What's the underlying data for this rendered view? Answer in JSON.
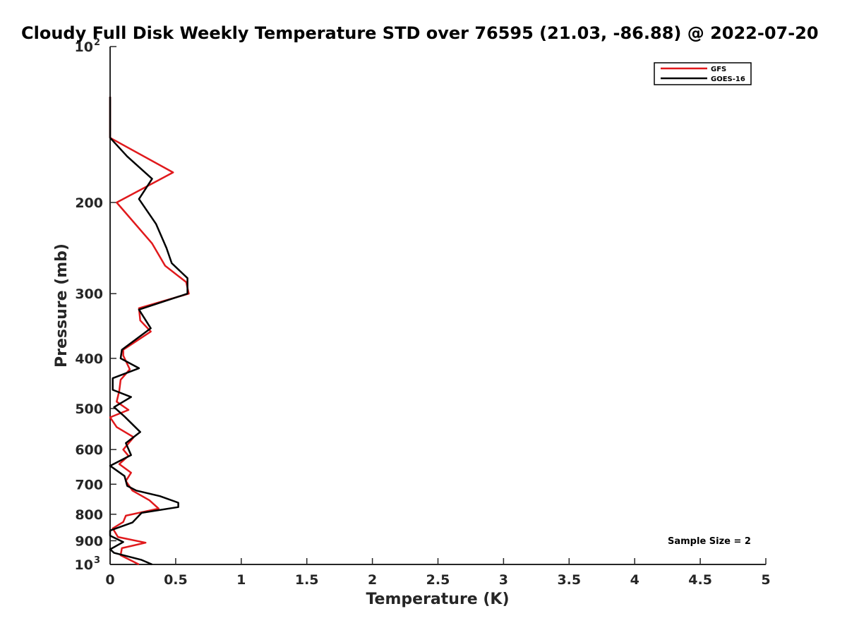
{
  "chart_data": {
    "type": "line",
    "title": "Cloudy Full Disk Weekly Temperature STD over 76595 (21.03, -86.88) @ 2022-07-20",
    "xlabel": "Temperature (K)",
    "ylabel": "Pressure (mb)",
    "xlim": [
      0,
      5
    ],
    "ylim": [
      100,
      1000
    ],
    "y_scale": "log",
    "y_reversed": true,
    "x_ticks": [
      "0",
      "0.5",
      "1",
      "1.5",
      "2",
      "2.5",
      "3",
      "3.5",
      "4",
      "4.5",
      "5"
    ],
    "y_ticks": [
      {
        "value": 100,
        "base": "10",
        "exp": "2"
      },
      {
        "value": 200,
        "label": "200"
      },
      {
        "value": 300,
        "label": "300"
      },
      {
        "value": 400,
        "label": "400"
      },
      {
        "value": 500,
        "label": "500"
      },
      {
        "value": 600,
        "label": "600"
      },
      {
        "value": 700,
        "label": "700"
      },
      {
        "value": 800,
        "label": "800"
      },
      {
        "value": 900,
        "label": "900"
      },
      {
        "value": 1000,
        "base": "10",
        "exp": "3"
      }
    ],
    "grid": false,
    "legend_position": "top-right",
    "annotation": "Sample Size = 2",
    "series": [
      {
        "name": "GFS",
        "color": "#e0191c",
        "points": [
          [
            0.0,
            125
          ],
          [
            0.0,
            150
          ],
          [
            0.48,
            175
          ],
          [
            0.05,
            200
          ],
          [
            0.32,
            240
          ],
          [
            0.42,
            265
          ],
          [
            0.58,
            285
          ],
          [
            0.6,
            300
          ],
          [
            0.22,
            320
          ],
          [
            0.23,
            338
          ],
          [
            0.31,
            355
          ],
          [
            0.1,
            385
          ],
          [
            0.1,
            395
          ],
          [
            0.15,
            420
          ],
          [
            0.08,
            440
          ],
          [
            0.07,
            462
          ],
          [
            0.05,
            485
          ],
          [
            0.14,
            503
          ],
          [
            0.0,
            520
          ],
          [
            0.05,
            543
          ],
          [
            0.18,
            568
          ],
          [
            0.1,
            600
          ],
          [
            0.14,
            617
          ],
          [
            0.07,
            640
          ],
          [
            0.16,
            665
          ],
          [
            0.12,
            690
          ],
          [
            0.17,
            720
          ],
          [
            0.3,
            752
          ],
          [
            0.37,
            780
          ],
          [
            0.12,
            805
          ],
          [
            0.1,
            828
          ],
          [
            0.02,
            852
          ],
          [
            0.06,
            885
          ],
          [
            0.27,
            908
          ],
          [
            0.09,
            930
          ],
          [
            0.08,
            960
          ],
          [
            0.22,
            1000
          ]
        ]
      },
      {
        "name": "GOES-16",
        "color": "#000000",
        "points": [
          [
            0.0,
            125
          ],
          [
            0.0,
            150
          ],
          [
            0.13,
            163
          ],
          [
            0.32,
            180
          ],
          [
            0.22,
            197
          ],
          [
            0.35,
            220
          ],
          [
            0.43,
            245
          ],
          [
            0.47,
            262
          ],
          [
            0.59,
            280
          ],
          [
            0.59,
            300
          ],
          [
            0.22,
            322
          ],
          [
            0.31,
            350
          ],
          [
            0.09,
            385
          ],
          [
            0.08,
            400
          ],
          [
            0.22,
            418
          ],
          [
            0.02,
            437
          ],
          [
            0.02,
            460
          ],
          [
            0.16,
            475
          ],
          [
            0.03,
            497
          ],
          [
            0.11,
            518
          ],
          [
            0.23,
            555
          ],
          [
            0.12,
            583
          ],
          [
            0.16,
            615
          ],
          [
            0.0,
            645
          ],
          [
            0.11,
            675
          ],
          [
            0.13,
            705
          ],
          [
            0.2,
            720
          ],
          [
            0.38,
            738
          ],
          [
            0.52,
            760
          ],
          [
            0.52,
            775
          ],
          [
            0.24,
            795
          ],
          [
            0.17,
            830
          ],
          [
            0.0,
            860
          ],
          [
            0.0,
            880
          ],
          [
            0.1,
            905
          ],
          [
            0.0,
            935
          ],
          [
            0.03,
            950
          ],
          [
            0.24,
            980
          ],
          [
            0.32,
            1000
          ]
        ]
      }
    ]
  }
}
